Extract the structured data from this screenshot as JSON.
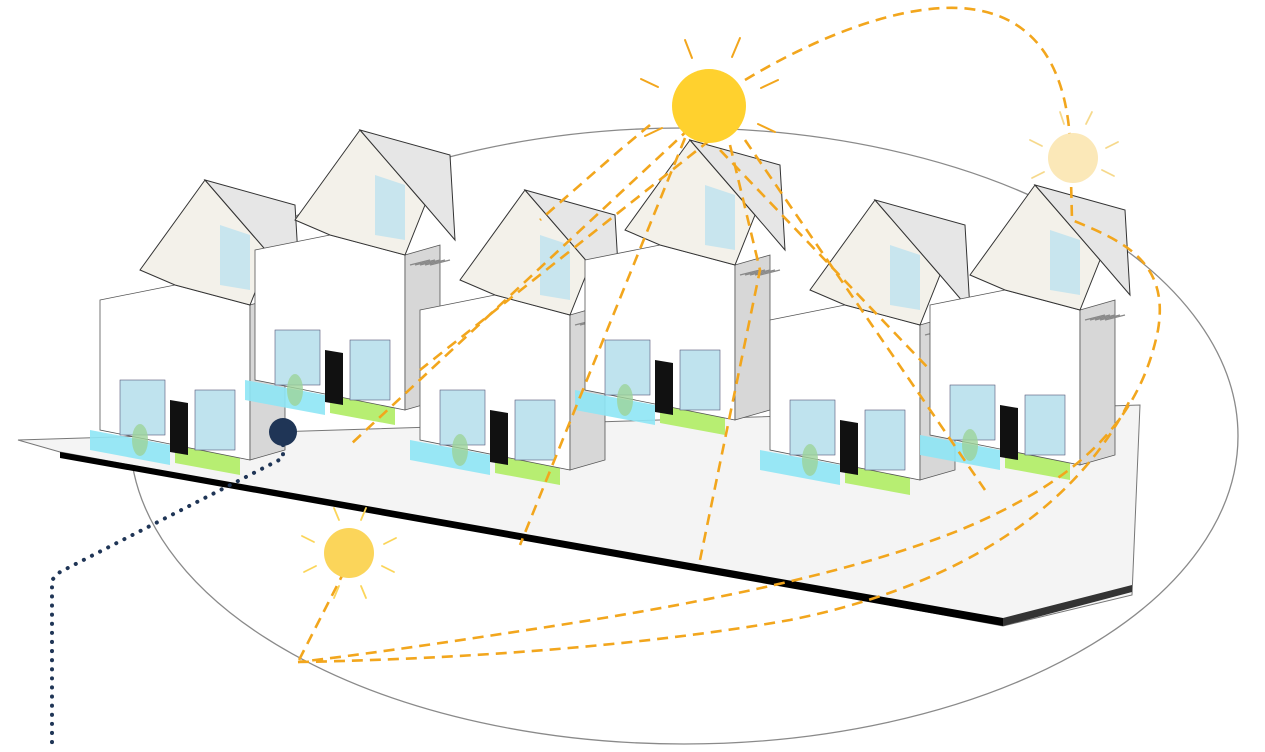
{
  "diagram": {
    "kind": "solar-path-over-row-houses",
    "colors": {
      "sun_main": "#FFD12E",
      "sun_secondary": "#FBD55A",
      "sun_faded": "#FBE8B8",
      "sun_path": "#F2A61D",
      "orbit_ellipse": "#8A8A8A",
      "marker_dot": "#1F3556",
      "dotted_leader": "#1F3556",
      "roof": "#F3F1EA",
      "wall": "#FFFFFF",
      "wall_shadow": "#D7D7D7",
      "glass": "#BFE3EE",
      "pool": "#8EE6F5",
      "lawn": "#B7EE72",
      "dark_door": "#111111",
      "ground_edge": "#000000"
    },
    "icons": [
      "sun-icon-noon",
      "sun-icon-morning",
      "sun-icon-evening",
      "location-marker-dot"
    ],
    "house_units": 6,
    "sun_positions": [
      "noon",
      "morning",
      "late-afternoon"
    ]
  }
}
